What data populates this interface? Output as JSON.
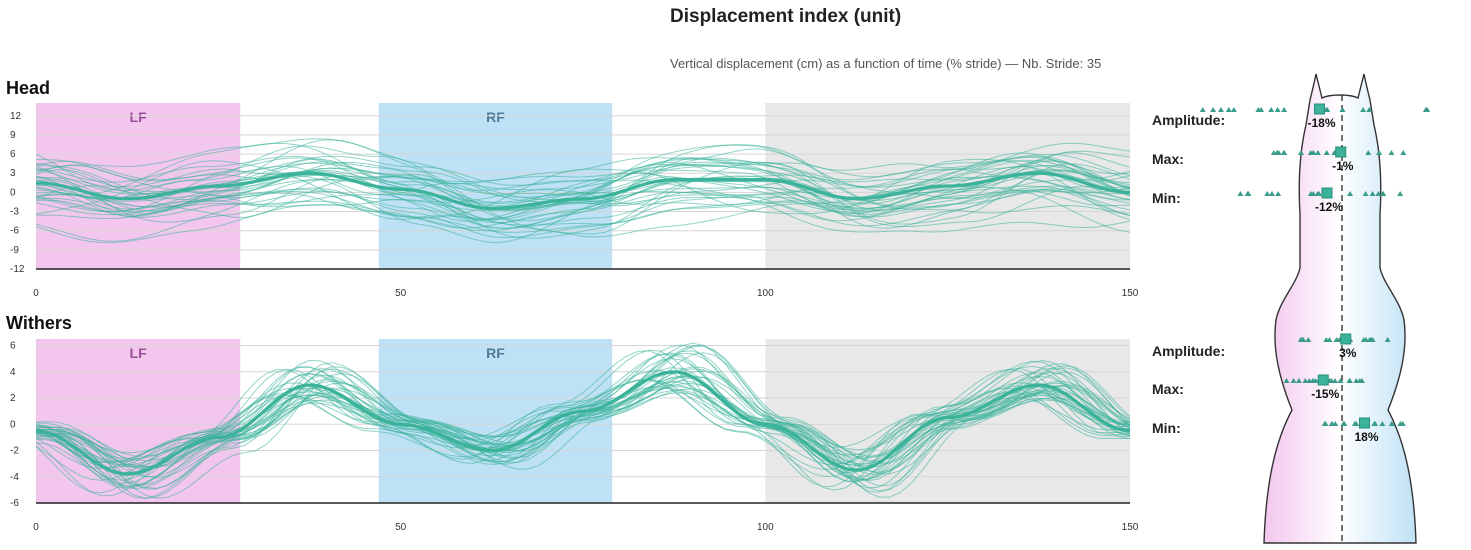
{
  "title": "Displacement index (unit)",
  "subtitle": "Vertical displacement (cm) as a function of time (% stride) — Nb. Stride: 35",
  "colors": {
    "lf_band": "#f3c6ee",
    "rf_band": "#bfe1f5",
    "gray_band": "#e8e8e8",
    "line": "#3bb39b",
    "lf_text": "#9a4d9a",
    "rf_text": "#4f7c99"
  },
  "chart_data": [
    {
      "name": "Head",
      "type": "line",
      "xlabel": "",
      "ylabel": "",
      "xlim": [
        0,
        150
      ],
      "ylim": [
        -12,
        14
      ],
      "x_ticks": [
        0,
        50,
        100,
        150
      ],
      "y_ticks": [
        12,
        9,
        6,
        3,
        0,
        -3,
        -6,
        -9,
        -12
      ],
      "bands": [
        {
          "label": "LF",
          "from": 0,
          "to": 28
        },
        {
          "label": "RF",
          "from": 47,
          "to": 79
        },
        {
          "label": "",
          "from": 100,
          "to": 150
        }
      ],
      "x": [
        0,
        12.5,
        25,
        37.5,
        50,
        62.5,
        75,
        87.5,
        100,
        112.5,
        125,
        137.5,
        150
      ],
      "mean": [
        1.5,
        -1.0,
        1.0,
        3.0,
        0.5,
        -2.5,
        -1.0,
        2.0,
        2.0,
        -1.0,
        1.0,
        3.0,
        0.0
      ],
      "strides": 35,
      "grid": true
    },
    {
      "name": "Withers",
      "type": "line",
      "xlabel": "",
      "ylabel": "",
      "xlim": [
        0,
        150
      ],
      "ylim": [
        -6,
        6.5
      ],
      "x_ticks": [
        0,
        50,
        100,
        150
      ],
      "y_ticks": [
        6,
        4,
        2,
        0,
        -2,
        -4,
        -6
      ],
      "bands": [
        {
          "label": "LF",
          "from": 0,
          "to": 28
        },
        {
          "label": "RF",
          "from": 47,
          "to": 79
        },
        {
          "label": "",
          "from": 100,
          "to": 150
        }
      ],
      "x": [
        0,
        12.5,
        25,
        37.5,
        50,
        62.5,
        75,
        87.5,
        100,
        112.5,
        125,
        137.5,
        150
      ],
      "mean": [
        -0.5,
        -3.8,
        -1.0,
        3.0,
        0.0,
        -2.0,
        1.0,
        4.0,
        0.0,
        -3.5,
        0.5,
        3.0,
        -0.5
      ],
      "strides": 35,
      "grid": true
    }
  ],
  "metrics": {
    "head": [
      {
        "label": "Amplitude:",
        "value": "-18%",
        "value_num": -18
      },
      {
        "label": "Max:",
        "value": "-1%",
        "value_num": -1
      },
      {
        "label": "Min:",
        "value": "-12%",
        "value_num": -12
      }
    ],
    "withers": [
      {
        "label": "Amplitude:",
        "value": "3%",
        "value_num": 3
      },
      {
        "label": "Max:",
        "value": "-15%",
        "value_num": -15
      },
      {
        "label": "Min:",
        "value": "18%",
        "value_num": 18
      }
    ]
  }
}
